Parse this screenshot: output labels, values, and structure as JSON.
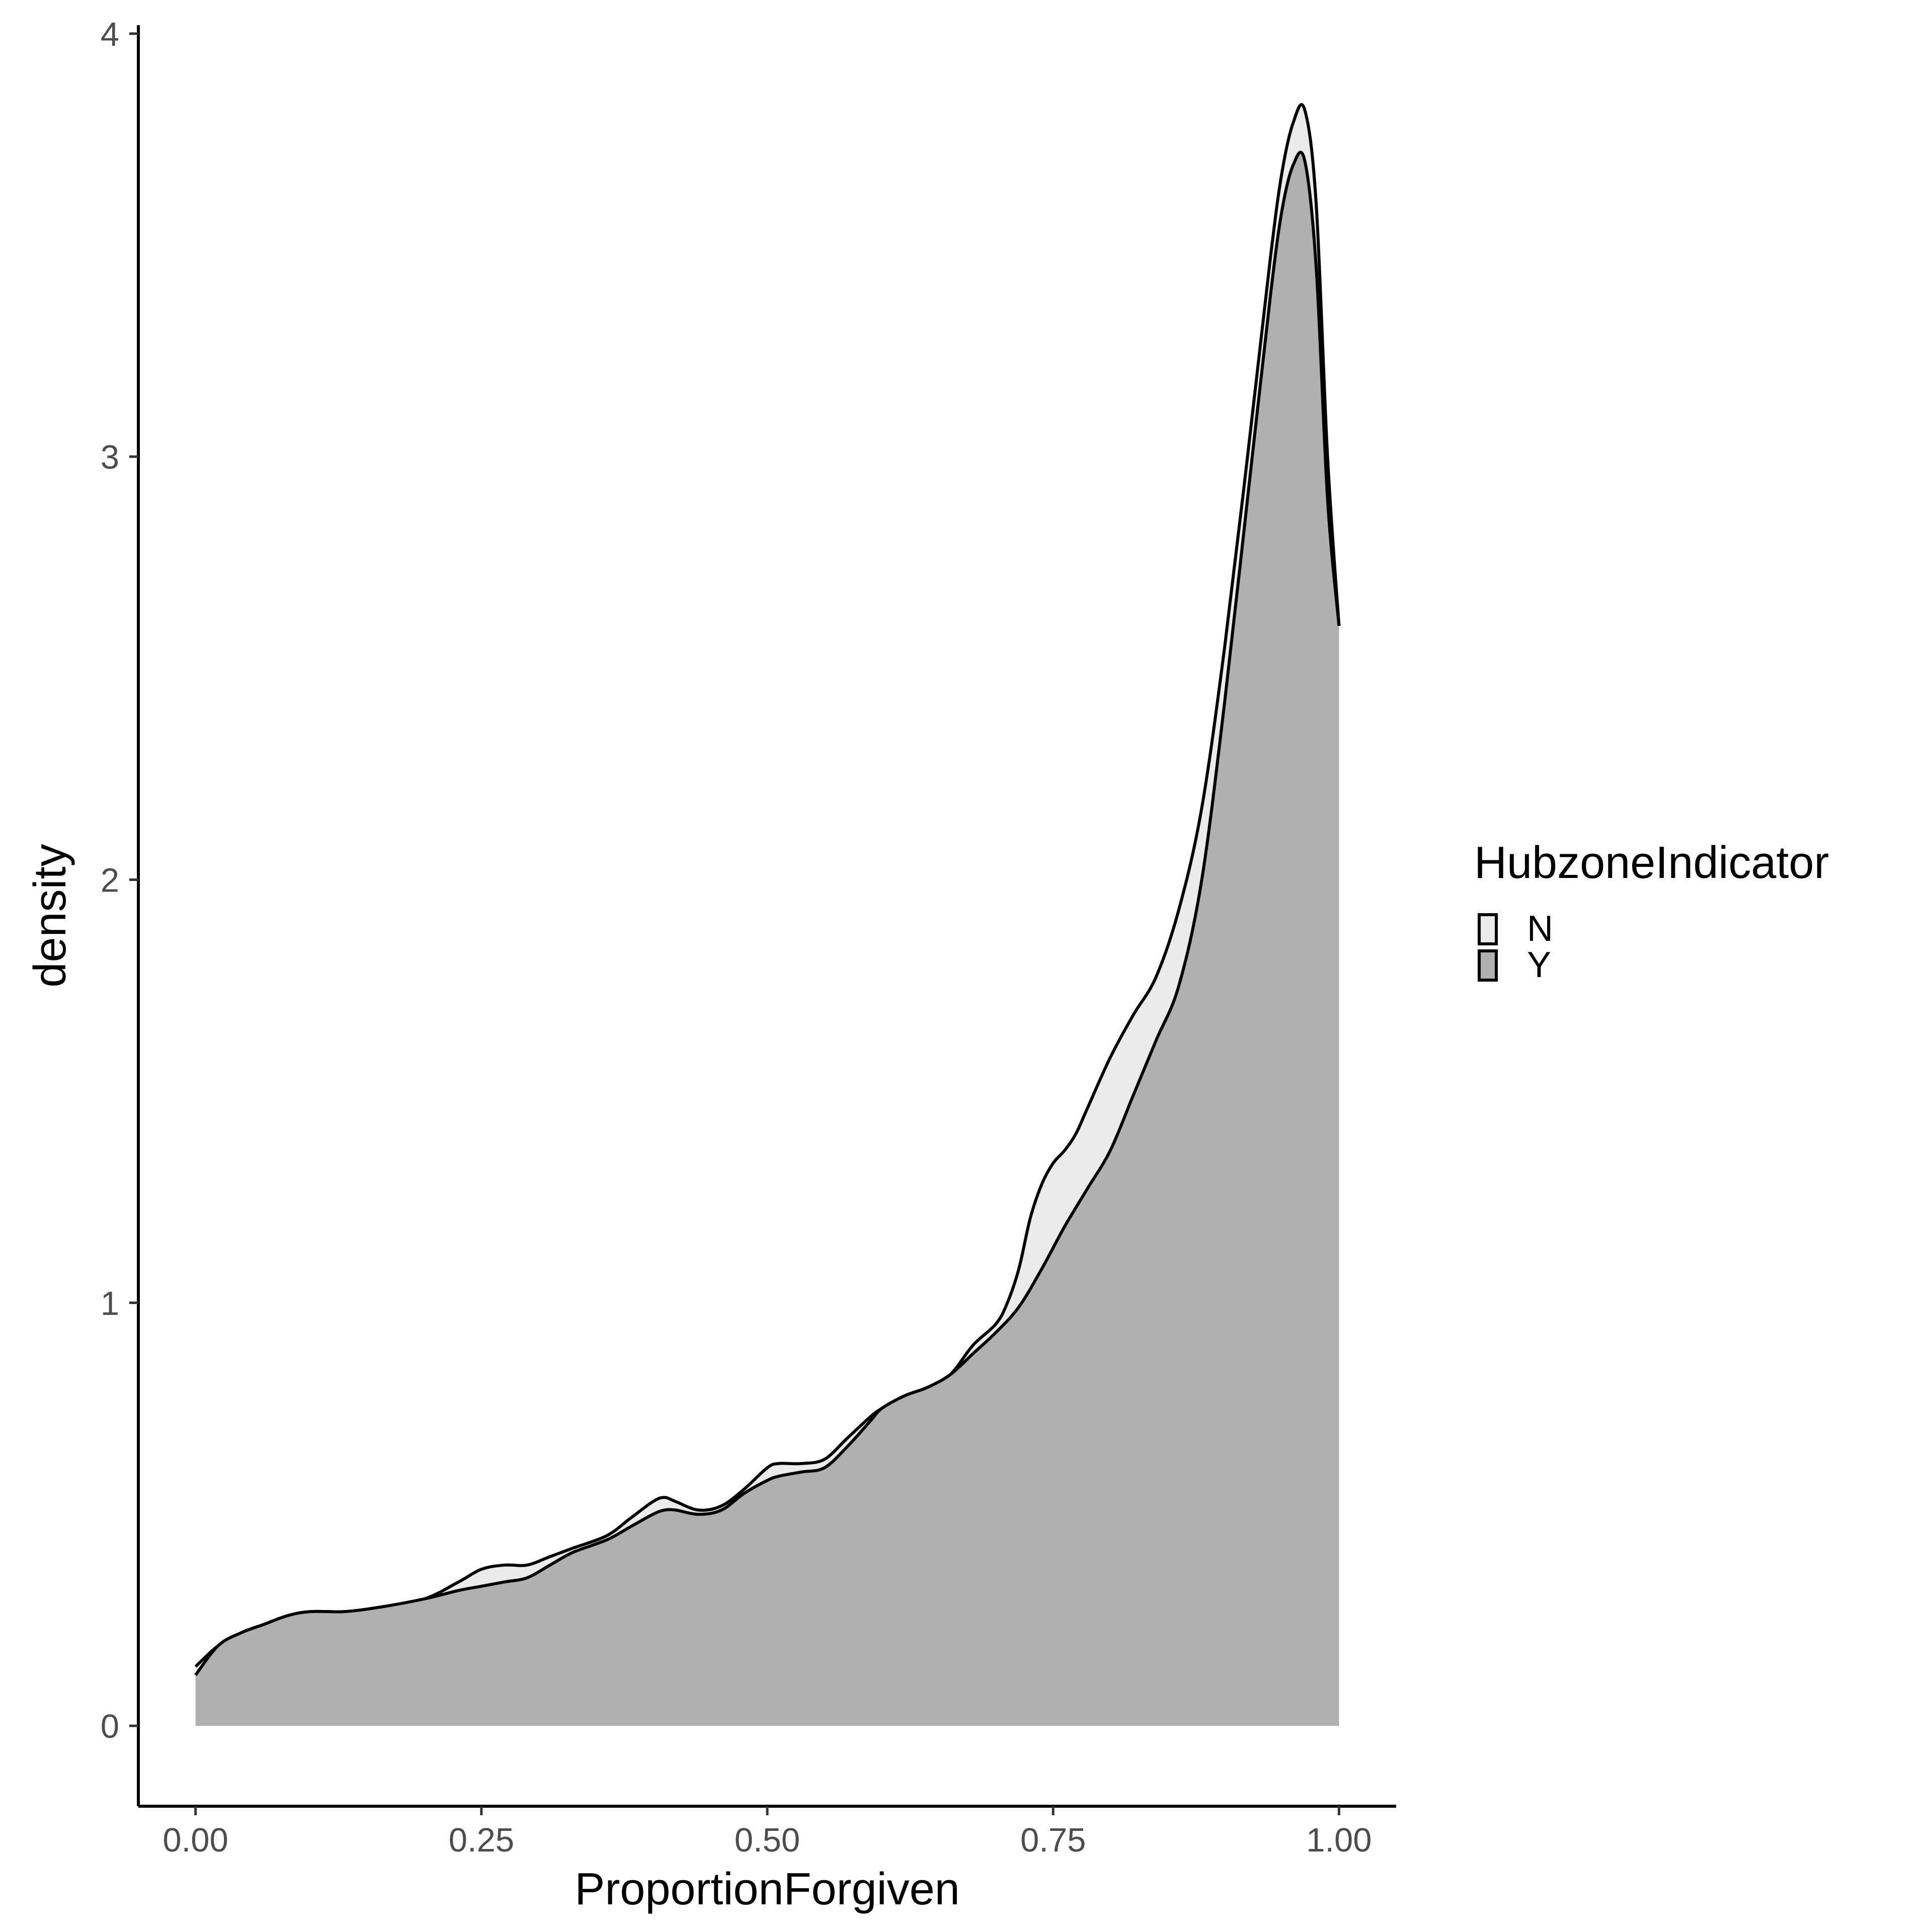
{
  "chart_data": {
    "type": "area",
    "subtype": "density",
    "xlabel": "ProportionForgiven",
    "ylabel": "density",
    "xlim": [
      -0.05,
      1.05
    ],
    "ylim": [
      -0.19,
      4.02
    ],
    "xticks": [
      0.0,
      0.25,
      0.5,
      0.75,
      1.0
    ],
    "xtick_labels": [
      "0.00",
      "0.25",
      "0.50",
      "0.75",
      "1.00"
    ],
    "yticks": [
      0,
      1,
      2,
      3,
      4
    ],
    "ytick_labels": [
      "0",
      "1",
      "2",
      "3",
      "4"
    ],
    "grid": false,
    "legend": {
      "title": "HubzoneIndicator",
      "position": "right",
      "entries": [
        {
          "label": "N",
          "fill": "#ebebeb"
        },
        {
          "label": "Y",
          "fill": "#b0b0b0"
        }
      ]
    },
    "series": [
      {
        "name": "N",
        "fill": "#ebebeb",
        "x": [
          0.0,
          0.02,
          0.04,
          0.06,
          0.08,
          0.1,
          0.13,
          0.16,
          0.2,
          0.23,
          0.25,
          0.27,
          0.29,
          0.31,
          0.33,
          0.36,
          0.38,
          0.4,
          0.41,
          0.42,
          0.44,
          0.46,
          0.48,
          0.5,
          0.51,
          0.53,
          0.55,
          0.57,
          0.59,
          0.6,
          0.62,
          0.64,
          0.66,
          0.68,
          0.7,
          0.71,
          0.72,
          0.73,
          0.74,
          0.75,
          0.76,
          0.77,
          0.78,
          0.8,
          0.82,
          0.84,
          0.86,
          0.88,
          0.9,
          0.92,
          0.94,
          0.95,
          0.96,
          0.97,
          0.98,
          0.99,
          1.0
        ],
        "y": [
          0.14,
          0.19,
          0.22,
          0.24,
          0.26,
          0.27,
          0.27,
          0.28,
          0.3,
          0.34,
          0.37,
          0.38,
          0.38,
          0.4,
          0.42,
          0.45,
          0.49,
          0.53,
          0.54,
          0.53,
          0.51,
          0.52,
          0.56,
          0.61,
          0.62,
          0.62,
          0.63,
          0.68,
          0.73,
          0.75,
          0.78,
          0.8,
          0.83,
          0.9,
          0.95,
          1.0,
          1.08,
          1.2,
          1.28,
          1.33,
          1.36,
          1.4,
          1.46,
          1.58,
          1.68,
          1.77,
          1.93,
          2.17,
          2.55,
          3.0,
          3.47,
          3.67,
          3.79,
          3.82,
          3.6,
          3.0,
          2.6
        ]
      },
      {
        "name": "Y",
        "fill": "#b0b0b0",
        "x": [
          0.0,
          0.02,
          0.04,
          0.06,
          0.08,
          0.1,
          0.13,
          0.16,
          0.2,
          0.23,
          0.25,
          0.27,
          0.29,
          0.31,
          0.33,
          0.36,
          0.38,
          0.4,
          0.41,
          0.42,
          0.44,
          0.46,
          0.48,
          0.5,
          0.51,
          0.53,
          0.55,
          0.57,
          0.59,
          0.6,
          0.62,
          0.64,
          0.66,
          0.68,
          0.7,
          0.72,
          0.74,
          0.76,
          0.78,
          0.8,
          0.82,
          0.84,
          0.86,
          0.88,
          0.9,
          0.92,
          0.94,
          0.95,
          0.96,
          0.97,
          0.98,
          0.99,
          1.0
        ],
        "y": [
          0.12,
          0.19,
          0.22,
          0.24,
          0.26,
          0.27,
          0.27,
          0.28,
          0.3,
          0.32,
          0.33,
          0.34,
          0.35,
          0.38,
          0.41,
          0.44,
          0.47,
          0.5,
          0.51,
          0.51,
          0.5,
          0.51,
          0.55,
          0.58,
          0.59,
          0.6,
          0.61,
          0.66,
          0.72,
          0.75,
          0.78,
          0.8,
          0.83,
          0.88,
          0.93,
          0.99,
          1.08,
          1.18,
          1.27,
          1.36,
          1.49,
          1.62,
          1.75,
          2.0,
          2.42,
          2.9,
          3.38,
          3.58,
          3.69,
          3.7,
          3.45,
          2.9,
          2.6
        ]
      }
    ]
  }
}
